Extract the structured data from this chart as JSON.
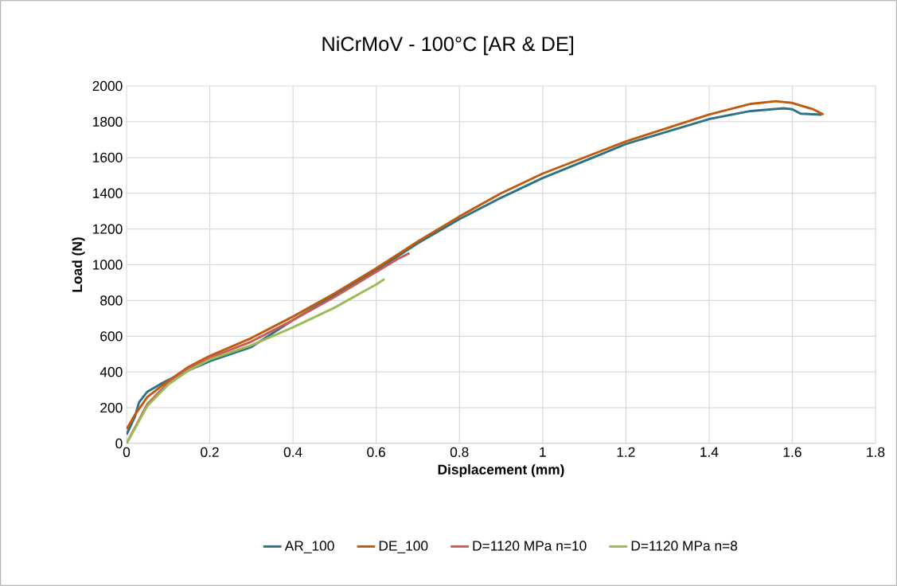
{
  "chart_data": {
    "type": "line",
    "title": "NiCrMoV - 100°C [AR & DE]",
    "xlabel": "Displacement (mm)",
    "ylabel": "Load (N)",
    "xlim": [
      0,
      1.8
    ],
    "xticks": [
      0,
      0.2,
      0.4,
      0.6,
      0.8,
      1,
      1.2,
      1.4,
      1.6,
      1.8
    ],
    "ylim": [
      0,
      2000
    ],
    "yticks": [
      0,
      200,
      400,
      600,
      800,
      1000,
      1200,
      1400,
      1600,
      1800,
      2000
    ],
    "grid": true,
    "legend": "bottom",
    "marker": "none",
    "line_style": "solid",
    "series": [
      {
        "name": "AR_100",
        "color": "#2e7283",
        "x": [
          0,
          0.02,
          0.03,
          0.05,
          0.08,
          0.1,
          0.15,
          0.2,
          0.3,
          0.4,
          0.5,
          0.6,
          0.7,
          0.8,
          0.9,
          1.0,
          1.2,
          1.4,
          1.5,
          1.58,
          1.6,
          1.62,
          1.67
        ],
        "values": [
          50,
          150,
          230,
          290,
          330,
          355,
          410,
          460,
          540,
          690,
          830,
          970,
          1120,
          1255,
          1375,
          1485,
          1675,
          1815,
          1860,
          1875,
          1870,
          1845,
          1840
        ]
      },
      {
        "name": "DE_100",
        "color": "#c05a0c",
        "x": [
          0,
          0.02,
          0.05,
          0.1,
          0.15,
          0.2,
          0.3,
          0.4,
          0.5,
          0.6,
          0.7,
          0.8,
          0.9,
          1.0,
          1.2,
          1.4,
          1.5,
          1.56,
          1.6,
          1.65,
          1.675
        ],
        "values": [
          80,
          160,
          260,
          350,
          430,
          490,
          590,
          710,
          840,
          980,
          1130,
          1270,
          1400,
          1510,
          1690,
          1840,
          1900,
          1915,
          1905,
          1870,
          1840
        ]
      },
      {
        "name": "D=1120 MPa n=10",
        "color": "#cd5a57",
        "x": [
          0,
          0.05,
          0.1,
          0.15,
          0.2,
          0.3,
          0.4,
          0.5,
          0.6,
          0.65,
          0.68
        ],
        "values": [
          0,
          220,
          340,
          420,
          480,
          570,
          690,
          820,
          960,
          1030,
          1065
        ]
      },
      {
        "name": "D=1120 MPa n=8",
        "color": "#9bbb59",
        "x": [
          0,
          0.05,
          0.1,
          0.15,
          0.2,
          0.3,
          0.4,
          0.5,
          0.6,
          0.62
        ],
        "values": [
          0,
          210,
          330,
          410,
          470,
          550,
          650,
          760,
          890,
          920
        ]
      }
    ]
  }
}
